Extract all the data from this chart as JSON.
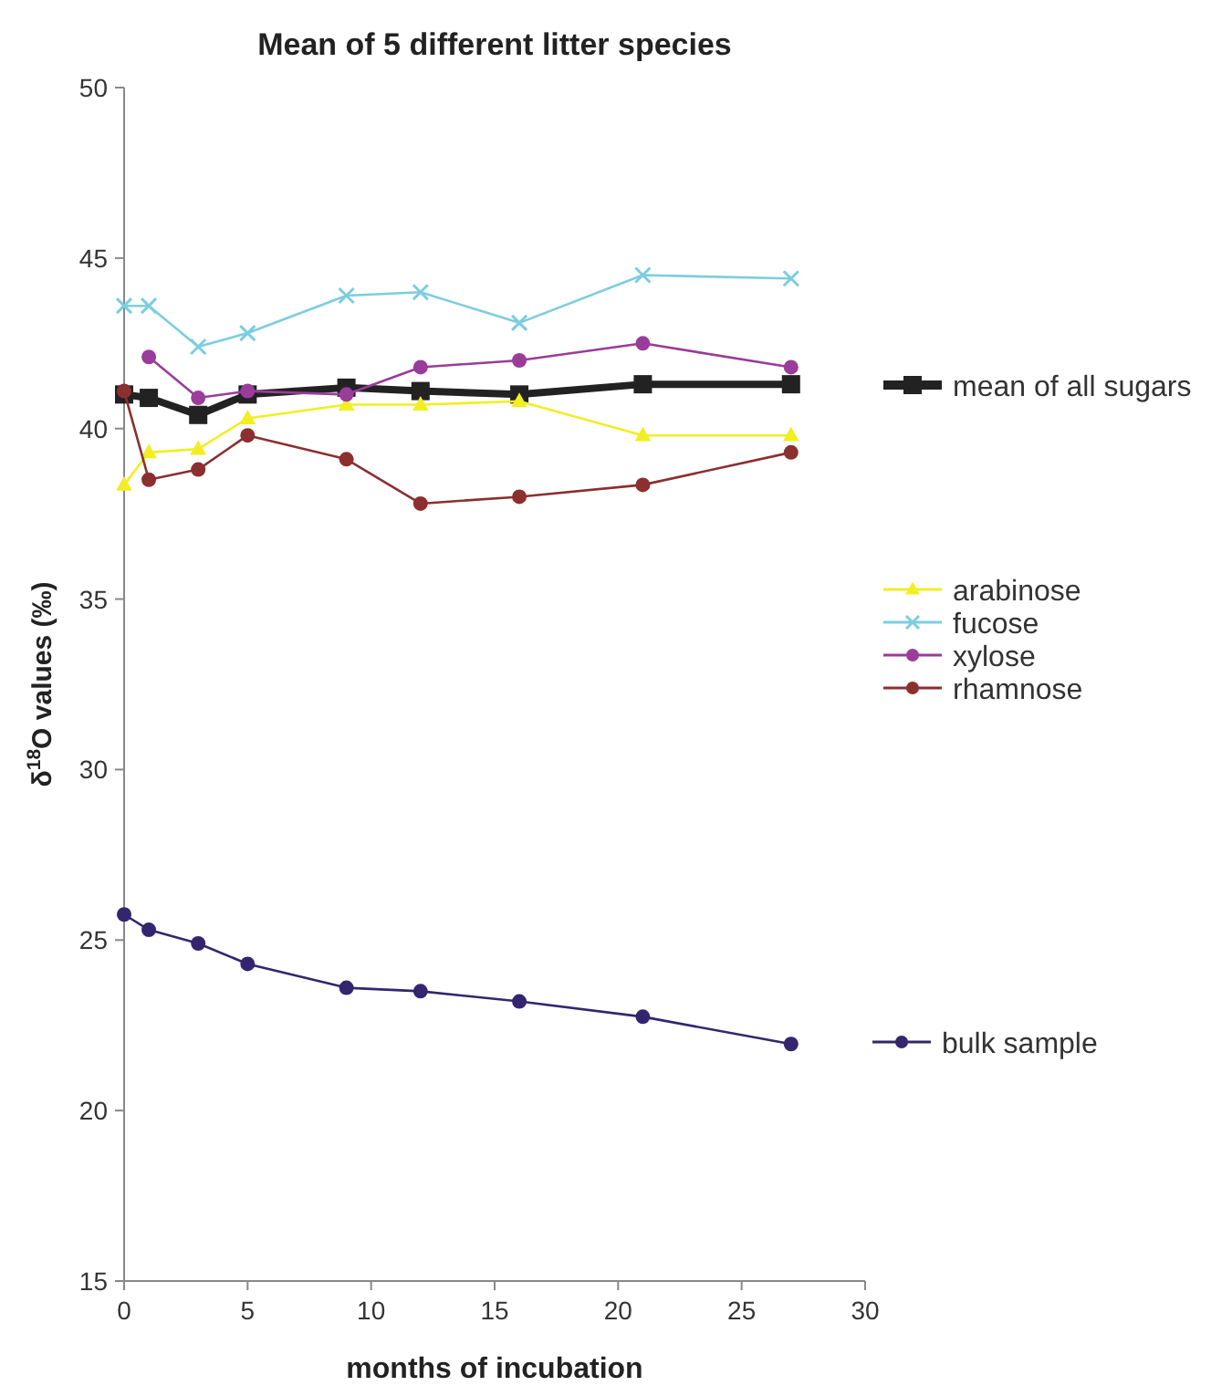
{
  "chart_data": {
    "type": "line",
    "title": "Mean of 5 different litter species",
    "xlabel": "months of incubation",
    "ylabel": "δ$^{18}$O values (‰)",
    "x": [
      0,
      1,
      3,
      5,
      9,
      12,
      16,
      21,
      27
    ],
    "xlim": [
      0,
      30
    ],
    "xticks": [
      0,
      5,
      10,
      15,
      20,
      25,
      30
    ],
    "ylim": [
      15,
      50
    ],
    "yticks": [
      15,
      20,
      25,
      30,
      35,
      40,
      45,
      50
    ],
    "grid": false,
    "legend": "right",
    "series": [
      {
        "name": "mean of all sugars",
        "color": "#222222",
        "marker": "square",
        "values": [
          41.0,
          40.9,
          40.4,
          41.0,
          41.2,
          41.1,
          41.0,
          41.3,
          41.3
        ]
      },
      {
        "name": "arabinose",
        "color": "#f2ee22",
        "marker": "triangle",
        "values": [
          38.35,
          39.3,
          39.4,
          40.3,
          40.7,
          40.7,
          40.8,
          39.8,
          39.8
        ]
      },
      {
        "name": "fucose",
        "color": "#7ccde0",
        "marker": "cross",
        "values": [
          43.6,
          43.6,
          42.4,
          42.8,
          43.9,
          44.0,
          43.1,
          44.5,
          44.4
        ]
      },
      {
        "name": "xylose",
        "color": "#9a3c9a",
        "marker": "circle",
        "values": [
          null,
          42.1,
          40.9,
          41.1,
          41.0,
          41.8,
          42.0,
          42.5,
          41.8
        ]
      },
      {
        "name": "rhamnose",
        "color": "#8b2f2f",
        "marker": "circle",
        "values": [
          41.1,
          38.5,
          38.8,
          39.8,
          39.1,
          37.8,
          38.0,
          38.35,
          39.3
        ]
      },
      {
        "name": "bulk sample",
        "color": "#33266e",
        "marker": "circle",
        "values": [
          25.75,
          25.3,
          24.9,
          24.3,
          23.6,
          23.5,
          23.2,
          22.75,
          21.95
        ]
      }
    ]
  }
}
